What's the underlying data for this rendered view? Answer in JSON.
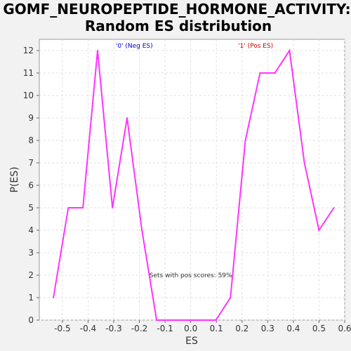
{
  "chart_data": {
    "type": "line",
    "title_line1": "GOMF_NEUROPEPTIDE_HORMONE_ACTIVITY:",
    "title_line2": "Random ES distribution",
    "xlabel": "ES",
    "ylabel": "P(ES)",
    "xlim": [
      -0.59,
      0.6
    ],
    "ylim": [
      0,
      12.5
    ],
    "xticks": [
      -0.5,
      -0.4,
      -0.3,
      -0.2,
      -0.1,
      0.0,
      0.1,
      0.2,
      0.3,
      0.4,
      0.5,
      0.6
    ],
    "xtick_labels": [
      "-0.5",
      "-0.4",
      "-0.3",
      "-0.2",
      "-0.1",
      "0.0",
      "0.1",
      "0.2",
      "0.3",
      "0.4",
      "0.5",
      "0.6"
    ],
    "yticks": [
      0,
      1,
      2,
      3,
      4,
      5,
      6,
      7,
      8,
      9,
      10,
      11,
      12
    ],
    "grid": true,
    "line_color": "#ff33ff",
    "series": [
      {
        "x": [
          -0.535,
          -0.477,
          -0.42,
          -0.363,
          -0.305,
          -0.248,
          -0.19,
          -0.133,
          -0.075,
          -0.018,
          0.04,
          0.098,
          0.155,
          0.213,
          0.27,
          0.328,
          0.385,
          0.443,
          0.5,
          0.558
        ],
        "y": [
          1,
          5,
          5,
          12,
          5,
          9,
          4,
          0,
          0,
          0,
          0,
          0,
          1,
          8,
          11,
          11,
          12,
          7,
          4,
          5
        ]
      }
    ],
    "annotations": {
      "neg_label": "'0' (Neg ES)",
      "neg_color": "#0000cc",
      "pos_label": "'1' (Pos ES)",
      "pos_color": "#cc0000",
      "sets_text": "Sets with pos scores: 59%"
    }
  }
}
